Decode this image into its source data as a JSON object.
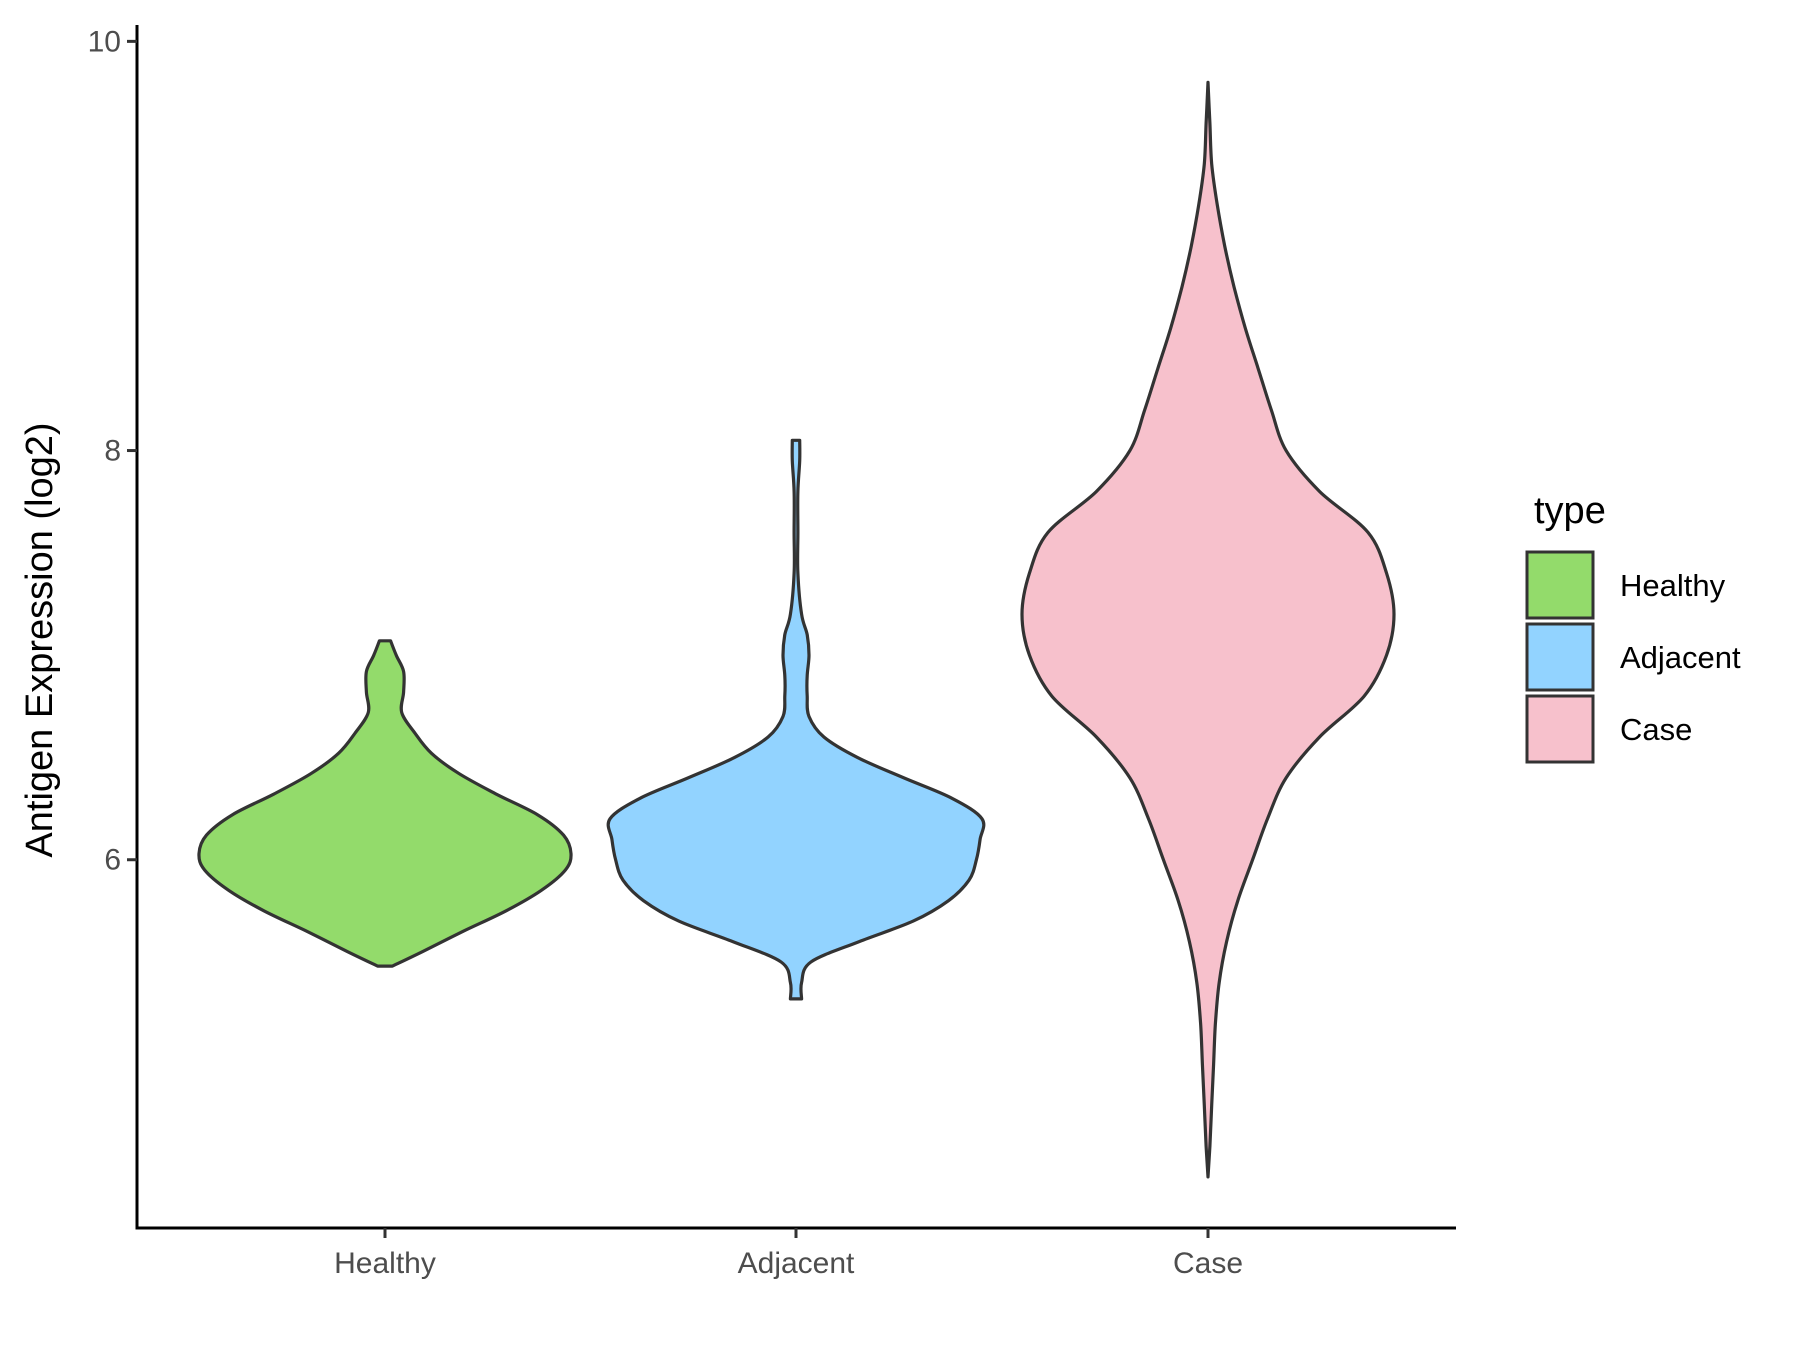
{
  "chart_data": {
    "type": "violin",
    "title": "",
    "xlabel": "",
    "ylabel": "Antigen Expression (log2)",
    "yticks": [
      6,
      8,
      10
    ],
    "ylim": [
      4.2,
      10.08
    ],
    "categories": [
      "Healthy",
      "Adjacent",
      "Case"
    ],
    "legend": {
      "title": "type",
      "placement": "right",
      "entries": [
        "Healthy",
        "Adjacent",
        "Case"
      ]
    },
    "colors": {
      "Healthy": "#93DB6B",
      "Adjacent": "#92D3FF",
      "Case": "#F7C1CC"
    },
    "series": [
      {
        "category": "Healthy",
        "min": 5.48,
        "max": 7.07,
        "density": [
          [
            5.48,
            0.04
          ],
          [
            5.55,
            0.2
          ],
          [
            5.65,
            0.42
          ],
          [
            5.75,
            0.65
          ],
          [
            5.85,
            0.84
          ],
          [
            5.95,
            0.97
          ],
          [
            6.03,
            1.0
          ],
          [
            6.12,
            0.96
          ],
          [
            6.22,
            0.82
          ],
          [
            6.32,
            0.6
          ],
          [
            6.42,
            0.4
          ],
          [
            6.52,
            0.25
          ],
          [
            6.62,
            0.16
          ],
          [
            6.72,
            0.09
          ],
          [
            6.82,
            0.1
          ],
          [
            6.92,
            0.1
          ],
          [
            7.0,
            0.06
          ],
          [
            7.07,
            0.03
          ]
        ]
      },
      {
        "category": "Adjacent",
        "min": 5.32,
        "max": 8.05,
        "density": [
          [
            5.32,
            0.03
          ],
          [
            5.4,
            0.03
          ],
          [
            5.5,
            0.08
          ],
          [
            5.6,
            0.34
          ],
          [
            5.7,
            0.63
          ],
          [
            5.8,
            0.82
          ],
          [
            5.9,
            0.93
          ],
          [
            6.0,
            0.97
          ],
          [
            6.1,
            0.99
          ],
          [
            6.2,
            1.0
          ],
          [
            6.3,
            0.84
          ],
          [
            6.4,
            0.58
          ],
          [
            6.5,
            0.33
          ],
          [
            6.6,
            0.15
          ],
          [
            6.7,
            0.07
          ],
          [
            6.8,
            0.06
          ],
          [
            6.9,
            0.06
          ],
          [
            7.0,
            0.07
          ],
          [
            7.1,
            0.06
          ],
          [
            7.2,
            0.03
          ],
          [
            7.4,
            0.01
          ],
          [
            7.6,
            0.01
          ],
          [
            7.8,
            0.01
          ],
          [
            7.95,
            0.02
          ],
          [
            8.05,
            0.02
          ]
        ]
      },
      {
        "category": "Case",
        "min": 4.45,
        "max": 9.8,
        "density": [
          [
            4.45,
            0.0
          ],
          [
            4.6,
            0.01
          ],
          [
            4.8,
            0.02
          ],
          [
            5.0,
            0.03
          ],
          [
            5.2,
            0.04
          ],
          [
            5.4,
            0.06
          ],
          [
            5.6,
            0.1
          ],
          [
            5.8,
            0.16
          ],
          [
            6.0,
            0.24
          ],
          [
            6.2,
            0.32
          ],
          [
            6.4,
            0.42
          ],
          [
            6.6,
            0.6
          ],
          [
            6.8,
            0.84
          ],
          [
            7.0,
            0.96
          ],
          [
            7.2,
            1.0
          ],
          [
            7.4,
            0.96
          ],
          [
            7.6,
            0.86
          ],
          [
            7.8,
            0.6
          ],
          [
            8.0,
            0.42
          ],
          [
            8.2,
            0.34
          ],
          [
            8.4,
            0.27
          ],
          [
            8.6,
            0.2
          ],
          [
            8.8,
            0.14
          ],
          [
            9.0,
            0.09
          ],
          [
            9.2,
            0.05
          ],
          [
            9.4,
            0.02
          ],
          [
            9.6,
            0.01
          ],
          [
            9.8,
            0.0
          ]
        ]
      }
    ]
  }
}
